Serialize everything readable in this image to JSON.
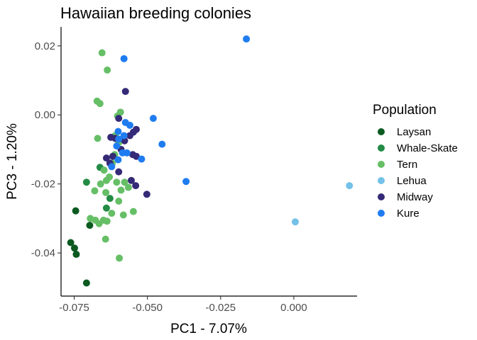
{
  "chart_data": {
    "type": "scatter",
    "title": "Hawaiian breeding colonies",
    "xlabel": "PC1 - 7.07%",
    "ylabel": "PC3 - 1.20%",
    "xlim": [
      -0.0795,
      0.0216
    ],
    "ylim": [
      -0.0525,
      0.0255
    ],
    "x_ticks": [
      -0.075,
      -0.05,
      -0.025,
      0.0
    ],
    "x_tick_labels": [
      "-0.075",
      "-0.050",
      "-0.025",
      "0.000"
    ],
    "y_ticks": [
      -0.04,
      -0.02,
      0.0,
      0.02
    ],
    "y_tick_labels": [
      "-0.04",
      "-0.02",
      "0.00",
      "0.02"
    ],
    "grid": false,
    "legend": {
      "title": "Population",
      "placement": "right"
    },
    "series": [
      {
        "name": "Laysan",
        "color": "#0b5a20",
        "points": [
          [
            -0.0762,
            -0.037
          ],
          [
            -0.0749,
            -0.0386
          ],
          [
            -0.0745,
            -0.0278
          ],
          [
            -0.0743,
            -0.0404
          ],
          [
            -0.0708,
            -0.0487
          ],
          [
            -0.0697,
            -0.032
          ]
        ]
      },
      {
        "name": "Whale-Skate",
        "color": "#238b45",
        "points": [
          [
            -0.0708,
            -0.0195
          ],
          [
            -0.0662,
            -0.0152
          ],
          [
            -0.064,
            -0.027
          ],
          [
            -0.0628,
            -0.0242
          ]
        ]
      },
      {
        "name": "Tern",
        "color": "#66bf66",
        "points": [
          [
            -0.0655,
            0.018
          ],
          [
            -0.0637,
            0.013
          ],
          [
            -0.0672,
            0.004
          ],
          [
            -0.0662,
            0.0033
          ],
          [
            -0.067,
            -0.0068
          ],
          [
            -0.068,
            -0.022
          ],
          [
            -0.066,
            -0.02
          ],
          [
            -0.0648,
            -0.016
          ],
          [
            -0.064,
            -0.019
          ],
          [
            -0.0642,
            -0.0225
          ],
          [
            -0.063,
            -0.018
          ],
          [
            -0.062,
            -0.014
          ],
          [
            -0.0612,
            -0.0115
          ],
          [
            -0.0605,
            -0.0195
          ],
          [
            -0.0598,
            -0.025
          ],
          [
            -0.059,
            -0.0218
          ],
          [
            -0.0578,
            -0.0195
          ],
          [
            -0.0565,
            -0.021
          ],
          [
            -0.0582,
            -0.029
          ],
          [
            -0.0548,
            -0.028
          ],
          [
            -0.0592,
            0.0008
          ],
          [
            -0.0602,
            -0.0003
          ],
          [
            -0.061,
            -0.006
          ],
          [
            -0.0598,
            -0.008
          ],
          [
            -0.0695,
            -0.03
          ],
          [
            -0.0678,
            -0.0305
          ],
          [
            -0.0665,
            -0.0315
          ],
          [
            -0.065,
            -0.0305
          ],
          [
            -0.0638,
            -0.0308
          ],
          [
            -0.0622,
            -0.0285
          ],
          [
            -0.0643,
            -0.036
          ],
          [
            -0.0596,
            -0.0415
          ]
        ]
      },
      {
        "name": "Lehua",
        "color": "#74c1e8",
        "points": [
          [
            0.0005,
            -0.031
          ],
          [
            0.019,
            -0.0205
          ]
        ]
      },
      {
        "name": "Midway",
        "color": "#342a77",
        "points": [
          [
            -0.0575,
            0.0068
          ],
          [
            -0.0598,
            -0.001
          ],
          [
            -0.0625,
            -0.0065
          ],
          [
            -0.061,
            -0.0068
          ],
          [
            -0.0578,
            -0.0075
          ],
          [
            -0.056,
            -0.006
          ],
          [
            -0.0548,
            -0.005
          ],
          [
            -0.0538,
            -0.0042
          ],
          [
            -0.059,
            -0.01
          ],
          [
            -0.064,
            -0.0125
          ],
          [
            -0.0628,
            -0.014
          ],
          [
            -0.0618,
            -0.012
          ],
          [
            -0.055,
            -0.0115
          ],
          [
            -0.0538,
            -0.012
          ],
          [
            -0.0598,
            -0.0165
          ],
          [
            -0.0555,
            -0.019
          ],
          [
            -0.054,
            -0.0205
          ],
          [
            -0.0502,
            -0.023
          ]
        ]
      },
      {
        "name": "Kure",
        "color": "#1f7cf0",
        "points": [
          [
            -0.0162,
            0.022
          ],
          [
            -0.058,
            0.0163
          ],
          [
            -0.048,
            -0.001
          ],
          [
            -0.0575,
            -0.0022
          ],
          [
            -0.056,
            -0.003
          ],
          [
            -0.06,
            -0.0048
          ],
          [
            -0.058,
            -0.006
          ],
          [
            -0.0598,
            -0.007
          ],
          [
            -0.045,
            -0.0085
          ],
          [
            -0.0605,
            -0.009
          ],
          [
            -0.057,
            -0.011
          ],
          [
            -0.0585,
            -0.011
          ],
          [
            -0.052,
            -0.0128
          ],
          [
            -0.06,
            -0.013
          ],
          [
            -0.0622,
            -0.015
          ],
          [
            -0.0368,
            -0.0193
          ]
        ]
      }
    ]
  }
}
